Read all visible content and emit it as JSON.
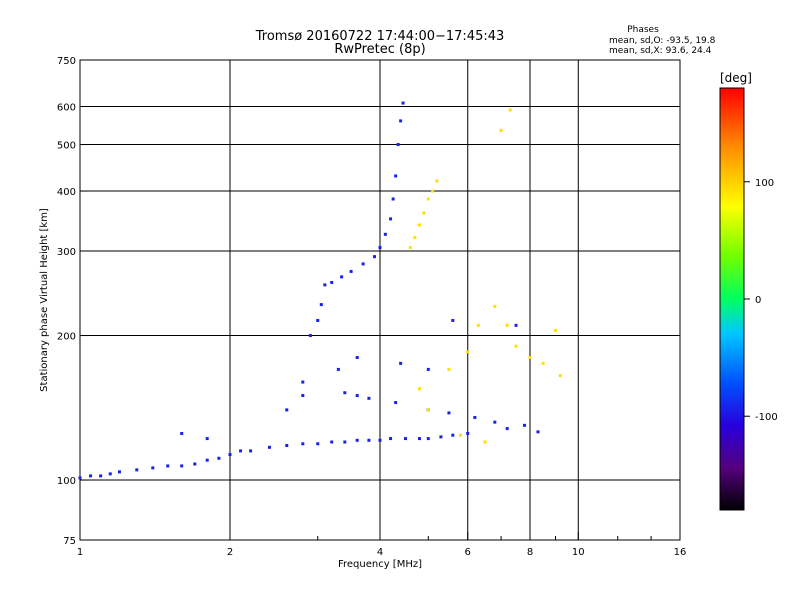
{
  "chart_data": {
    "type": "scatter",
    "title": "Tromsø 20160722 17:44:00−17:45:43",
    "subtitle": "RwPretec (8p)",
    "xlabel": "Frequency [MHz]",
    "ylabel": "Stationary phase Virtual Height [km]",
    "xscale": "log",
    "yscale": "log",
    "xlim": [
      1,
      16
    ],
    "ylim": [
      75,
      750
    ],
    "xticks": [
      1,
      2,
      4,
      6,
      8,
      10,
      16
    ],
    "yticks": [
      75,
      100,
      200,
      300,
      400,
      500,
      600,
      750
    ],
    "grid": true,
    "stats": {
      "heading": "Phases",
      "line_o": "mean, sd,O: -93.5, 19.8",
      "line_x": "mean, sd,X:  93.6, 24.4"
    },
    "colorbar": {
      "label": "[deg]",
      "range": [
        -180,
        180
      ],
      "ticks": [
        100,
        0,
        -100
      ],
      "colormap": "rainbow (black → purple → blue → cyan → green → yellow → orange → red)"
    },
    "series": [
      {
        "mode": "O",
        "phase_mean": -93.5,
        "x": [
          1.0,
          1.05,
          1.1,
          1.15,
          1.2,
          1.3,
          1.4,
          1.5,
          1.6,
          1.7,
          1.8,
          1.9,
          2.0,
          2.1,
          2.2,
          2.4,
          2.6,
          2.8,
          3.0,
          3.2,
          3.4,
          3.6,
          3.8,
          4.0,
          4.2,
          4.5,
          4.8,
          5.0,
          5.3,
          5.6,
          6.0,
          3.1,
          3.2,
          3.35,
          3.5,
          3.7,
          3.9,
          4.0,
          4.1,
          4.2,
          4.25,
          4.3,
          4.35,
          4.4,
          4.45,
          2.9,
          3.0,
          3.05,
          2.8,
          3.4,
          3.6,
          3.8,
          4.3,
          5.0,
          5.5,
          6.2,
          6.8,
          7.2,
          7.8,
          8.3,
          2.6,
          2.8,
          3.3,
          3.6,
          4.4,
          5.0,
          5.6,
          7.5,
          1.6,
          1.8
        ],
        "y": [
          101,
          102,
          102,
          103,
          104,
          105,
          106,
          107,
          107,
          108,
          110,
          111,
          113,
          115,
          115,
          117,
          118,
          119,
          119,
          120,
          120,
          121,
          121,
          121,
          122,
          122,
          122,
          122,
          123,
          124,
          125,
          255,
          258,
          265,
          272,
          282,
          292,
          305,
          325,
          350,
          385,
          430,
          500,
          560,
          610,
          200,
          215,
          232,
          160,
          152,
          150,
          148,
          145,
          140,
          138,
          135,
          132,
          128,
          130,
          126,
          140,
          150,
          170,
          180,
          175,
          170,
          215,
          210,
          125,
          122
        ]
      },
      {
        "mode": "X",
        "phase_mean": 93.6,
        "x": [
          4.6,
          4.7,
          4.8,
          4.9,
          5.0,
          5.1,
          5.2,
          4.8,
          5.0,
          5.5,
          6.0,
          6.3,
          6.8,
          7.2,
          7.5,
          8.0,
          8.5,
          9.0,
          9.2,
          5.8,
          6.5,
          7.3,
          7.0
        ],
        "y": [
          305,
          320,
          340,
          360,
          385,
          400,
          420,
          155,
          140,
          170,
          185,
          210,
          230,
          210,
          190,
          180,
          175,
          205,
          165,
          124,
          120,
          590,
          535
        ]
      }
    ]
  }
}
